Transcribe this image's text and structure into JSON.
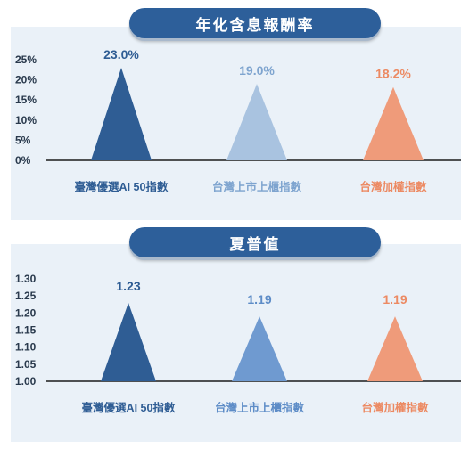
{
  "chart_data": [
    {
      "type": "bar",
      "title": "年化含息報酬率",
      "categories": [
        "臺灣優選AI 50指數",
        "台灣上市上櫃指數",
        "台灣加權指數"
      ],
      "values": [
        23.0,
        19.0,
        18.2
      ],
      "value_labels": [
        "23.0%",
        "19.0%",
        "18.2%"
      ],
      "ylim": [
        0,
        25
      ],
      "yticks": [
        0,
        5,
        10,
        15,
        20,
        25
      ],
      "ytick_labels": [
        "0%",
        "5%",
        "10%",
        "15%",
        "20%",
        "25%"
      ],
      "colors": [
        "#2f5d94",
        "#a9c3e0",
        "#ef9b7a"
      ],
      "label_colors": [
        "#2f5d94",
        "#7ea4cf",
        "#ec8a63"
      ],
      "grid": false
    },
    {
      "type": "bar",
      "title": "夏普值",
      "categories": [
        "臺灣優選AI 50指數",
        "台灣上市上櫃指數",
        "台灣加權指數"
      ],
      "values": [
        1.23,
        1.19,
        1.19
      ],
      "value_labels": [
        "1.23",
        "1.19",
        "1.19"
      ],
      "ylim": [
        1.0,
        1.3
      ],
      "yticks": [
        1.0,
        1.05,
        1.1,
        1.15,
        1.2,
        1.25,
        1.3
      ],
      "ytick_labels": [
        "1.00",
        "1.05",
        "1.10",
        "1.15",
        "1.20",
        "1.25",
        "1.30"
      ],
      "colors": [
        "#2f5d94",
        "#6f9ad0",
        "#ef9b7a"
      ],
      "label_colors": [
        "#2f5d94",
        "#5d8cc7",
        "#ec8a63"
      ],
      "grid": false
    }
  ]
}
